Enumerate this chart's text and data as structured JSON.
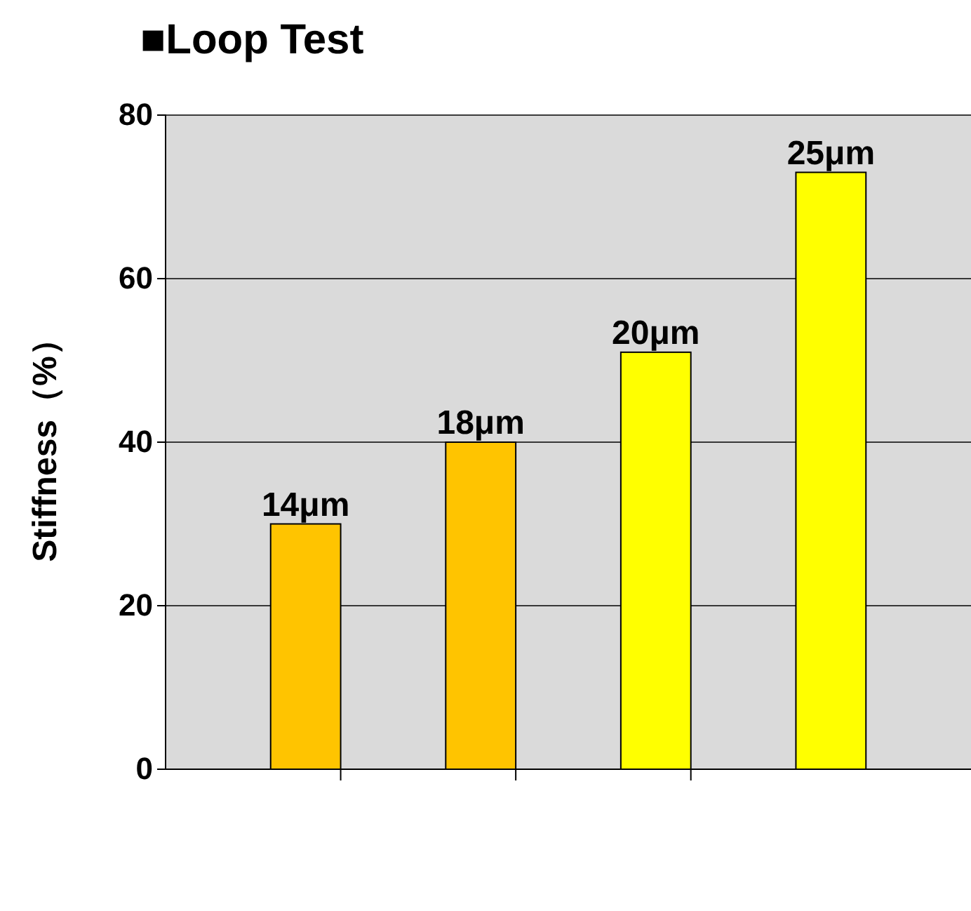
{
  "chart_data": {
    "type": "bar",
    "title": "■Loop Test",
    "ylabel": "Stiffness（%）",
    "categories": [
      null,
      null,
      null,
      null
    ],
    "values": [
      30,
      40,
      51,
      73
    ],
    "colors": [
      "#ffc400",
      "#ffc400",
      "#ffff00",
      "#ffff00"
    ],
    "annotations": [
      {
        "text": "14μm",
        "y": 30
      },
      {
        "text": "18μm",
        "y": 40
      },
      {
        "text": "20μm",
        "y": 51
      },
      {
        "text": "25μm",
        "y": 73
      }
    ],
    "ylim": [
      0,
      80
    ],
    "yticks": [
      0,
      20,
      40,
      60,
      80
    ],
    "grid": "y"
  }
}
